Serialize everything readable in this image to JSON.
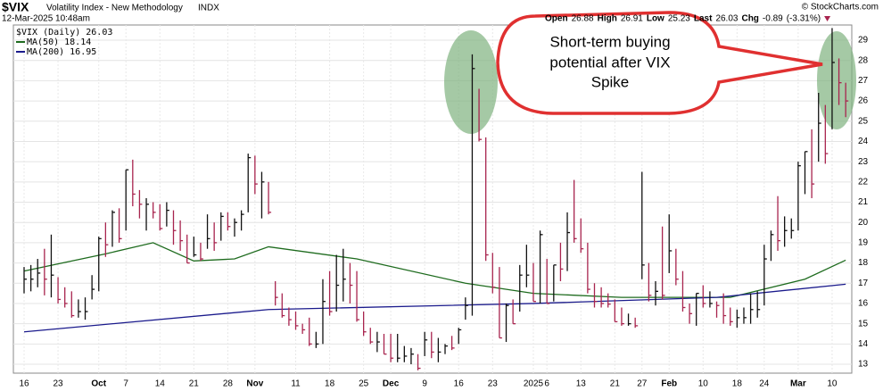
{
  "chart_data": {
    "type": "ohlc",
    "symbol": "$VIX",
    "title": "Volatility Index - New Methodology",
    "exchange": "INDX",
    "date": "12-Mar-2025 10:48am",
    "credit": "© StockCharts.com",
    "quote": [
      {
        "label": "Open",
        "value": 26.88
      },
      {
        "label": "High",
        "value": 26.91
      },
      {
        "label": "Low",
        "value": 25.23
      },
      {
        "label": "Last",
        "value": 26.03
      },
      {
        "label": "Chg",
        "value": -0.89
      }
    ],
    "chg_pct": "(-3.31%)",
    "price_legend": "$VIX (Daily) 26.03",
    "up_color": "#111111",
    "down_color": "#a8244e",
    "annotation": [
      "Short-term buying",
      "potential after VIX",
      "Spike"
    ],
    "ylim": [
      12.56,
      29.75
    ],
    "yticks": [
      13,
      14,
      15,
      16,
      17,
      18,
      19,
      20,
      21,
      22,
      23,
      24,
      25,
      26,
      27,
      28,
      29
    ],
    "xlim": [
      -1,
      122
    ],
    "xticks": [
      {
        "value": 0,
        "label": "16"
      },
      {
        "value": 5,
        "label": "23"
      },
      {
        "value": 11,
        "label": "Oct"
      },
      {
        "value": 15,
        "label": "7"
      },
      {
        "value": 20,
        "label": "14"
      },
      {
        "value": 25,
        "label": "21"
      },
      {
        "value": 30,
        "label": "28"
      },
      {
        "value": 34,
        "label": "Nov"
      },
      {
        "value": 40,
        "label": "11"
      },
      {
        "value": 45,
        "label": "18"
      },
      {
        "value": 50,
        "label": "25"
      },
      {
        "value": 54,
        "label": "Dec"
      },
      {
        "value": 59,
        "label": "9"
      },
      {
        "value": 64,
        "label": "16"
      },
      {
        "value": 69,
        "label": "23"
      },
      {
        "value": 75,
        "label": "2025"
      },
      {
        "value": 77,
        "label": "6"
      },
      {
        "value": 82,
        "label": "13"
      },
      {
        "value": 87,
        "label": "21"
      },
      {
        "value": 91,
        "label": "27"
      },
      {
        "value": 95,
        "label": "Feb"
      },
      {
        "value": 100,
        "label": "10"
      },
      {
        "value": 105,
        "label": "18"
      },
      {
        "value": 109,
        "label": "24"
      },
      {
        "value": 114,
        "label": "Mar"
      },
      {
        "value": 119,
        "label": "10"
      }
    ],
    "bars": [
      [
        17.8,
        16.5,
        17.2
      ],
      [
        17.9,
        16.6,
        17.2
      ],
      [
        18.2,
        16.8,
        17.5
      ],
      [
        18.7,
        16.4,
        17.2
      ],
      [
        19.4,
        16.3,
        17.4
      ],
      [
        17.3,
        16.0,
        16.2
      ],
      [
        16.8,
        15.8,
        16.0
      ],
      [
        16.6,
        15.3,
        15.4
      ],
      [
        16.2,
        15.3,
        15.6
      ],
      [
        16.3,
        15.2,
        15.6
      ],
      [
        17.4,
        16.2,
        16.7
      ],
      [
        19.3,
        16.6,
        19.2
      ],
      [
        20.0,
        18.3,
        18.9
      ],
      [
        20.6,
        18.8,
        20.5
      ],
      [
        20.7,
        19.0,
        19.2
      ],
      [
        22.6,
        19.6,
        22.6
      ],
      [
        23.1,
        20.8,
        21.4
      ],
      [
        21.6,
        20.2,
        20.9
      ],
      [
        21.2,
        19.6,
        20.9
      ],
      [
        21.0,
        20.2,
        20.5
      ],
      [
        20.9,
        19.6,
        19.7
      ],
      [
        21.0,
        19.8,
        20.6
      ],
      [
        20.6,
        18.9,
        19.6
      ],
      [
        20.1,
        18.6,
        19.1
      ],
      [
        19.4,
        18.0,
        18.0
      ],
      [
        19.3,
        18.3,
        18.4
      ],
      [
        19.0,
        18.1,
        18.2
      ],
      [
        20.4,
        18.7,
        19.2
      ],
      [
        20.0,
        18.6,
        19.0
      ],
      [
        20.5,
        19.1,
        20.3
      ],
      [
        20.5,
        19.6,
        19.8
      ],
      [
        20.2,
        19.3,
        20.0
      ],
      [
        20.6,
        19.6,
        20.4
      ],
      [
        23.4,
        20.5,
        23.2
      ],
      [
        23.3,
        21.4,
        21.9
      ],
      [
        22.5,
        20.2,
        22.0
      ],
      [
        22.0,
        20.4,
        20.5
      ],
      [
        17.1,
        15.9,
        16.3
      ],
      [
        16.5,
        15.3,
        15.4
      ],
      [
        15.8,
        14.9,
        15.2
      ],
      [
        15.6,
        14.7,
        14.9
      ],
      [
        15.0,
        14.5,
        14.7
      ],
      [
        15.3,
        13.9,
        14.0
      ],
      [
        14.6,
        13.8,
        14.0
      ],
      [
        17.2,
        14.0,
        16.1
      ],
      [
        17.6,
        15.4,
        15.6
      ],
      [
        18.4,
        15.6,
        16.9
      ],
      [
        18.7,
        16.1,
        17.2
      ],
      [
        18.0,
        16.0,
        16.9
      ],
      [
        17.6,
        15.1,
        15.2
      ],
      [
        15.6,
        14.4,
        14.6
      ],
      [
        14.8,
        14.0,
        14.1
      ],
      [
        14.6,
        13.6,
        14.1
      ],
      [
        14.5,
        13.5,
        13.5
      ],
      [
        14.5,
        13.1,
        13.3
      ],
      [
        14.5,
        13.1,
        13.3
      ],
      [
        13.9,
        13.1,
        13.4
      ],
      [
        13.8,
        13.0,
        13.5
      ],
      [
        13.5,
        12.7,
        12.8
      ],
      [
        14.6,
        13.4,
        14.2
      ],
      [
        14.6,
        13.3,
        13.6
      ],
      [
        14.3,
        13.1,
        13.6
      ],
      [
        14.0,
        13.5,
        13.9
      ],
      [
        14.4,
        13.7,
        13.8
      ],
      [
        14.8,
        14.0,
        14.7
      ],
      [
        16.3,
        15.2,
        15.9
      ],
      [
        28.3,
        15.4,
        27.6
      ],
      [
        26.6,
        24.0,
        24.1
      ],
      [
        24.2,
        18.1,
        18.4
      ],
      [
        18.5,
        16.5,
        16.8
      ],
      [
        17.8,
        14.3,
        14.3
      ],
      [
        16.0,
        14.1,
        15.9
      ],
      [
        16.2,
        15.0,
        15.0
      ],
      [
        17.9,
        15.6,
        17.4
      ],
      [
        18.9,
        16.8,
        17.4
      ],
      [
        18.0,
        16.1,
        16.1
      ],
      [
        19.6,
        16.0,
        19.4
      ],
      [
        18.2,
        16.0,
        16.0
      ],
      [
        17.9,
        16.1,
        17.9
      ],
      [
        19.0,
        17.1,
        17.7
      ],
      [
        20.5,
        17.6,
        19.5
      ],
      [
        22.1,
        19.0,
        19.2
      ],
      [
        20.2,
        18.5,
        18.7
      ],
      [
        19.0,
        16.5,
        16.7
      ],
      [
        17.0,
        15.8,
        16.1
      ],
      [
        16.8,
        15.8,
        16.0
      ],
      [
        16.5,
        15.8,
        15.97
      ],
      [
        16.2,
        15.1,
        15.1
      ],
      [
        15.8,
        14.9,
        15.0
      ],
      [
        15.5,
        14.9,
        15.0
      ],
      [
        15.3,
        14.8,
        14.9
      ],
      [
        22.5,
        17.2,
        17.9
      ],
      [
        18.0,
        16.1,
        16.4
      ],
      [
        17.1,
        15.9,
        16.6
      ],
      [
        19.8,
        16.2,
        16.4
      ],
      [
        20.4,
        17.5,
        18.6
      ],
      [
        18.7,
        16.9,
        17.2
      ],
      [
        17.6,
        15.6,
        15.8
      ],
      [
        16.0,
        15.0,
        15.5
      ],
      [
        16.5,
        14.9,
        16.5
      ],
      [
        16.9,
        15.8,
        16.0
      ],
      [
        16.6,
        15.8,
        16.0
      ],
      [
        16.1,
        15.3,
        15.9
      ],
      [
        16.5,
        15.0,
        15.4
      ],
      [
        15.8,
        14.9,
        15.1
      ],
      [
        15.7,
        14.8,
        15.3
      ],
      [
        15.8,
        15.0,
        15.3
      ],
      [
        16.5,
        15.0,
        15.7
      ],
      [
        16.6,
        15.3,
        15.7
      ],
      [
        18.9,
        15.9,
        18.2
      ],
      [
        19.6,
        18.1,
        19.4
      ],
      [
        21.3,
        18.6,
        19.1
      ],
      [
        20.3,
        18.8,
        19.6
      ],
      [
        20.2,
        19.2,
        19.6
      ],
      [
        23.0,
        19.6,
        22.8
      ],
      [
        23.5,
        21.4,
        23.5
      ],
      [
        24.6,
        21.2,
        21.9
      ],
      [
        26.4,
        23.0,
        24.9
      ],
      [
        25.8,
        22.9,
        23.4
      ],
      [
        29.6,
        24.6,
        27.9
      ],
      [
        28.1,
        25.8,
        26.9
      ],
      [
        26.9,
        25.2,
        26.0
      ]
    ],
    "series": [
      {
        "name": "MA(50) 18.14",
        "color": "#1e6b1e",
        "x": [
          0,
          12,
          19,
          25,
          31,
          36,
          49,
          65,
          75,
          88,
          104,
          115,
          121
        ],
        "values": [
          17.6,
          18.45,
          19.0,
          18.1,
          18.2,
          18.8,
          18.2,
          17.0,
          16.5,
          16.3,
          16.3,
          17.2,
          18.14
        ]
      },
      {
        "name": "MA(200) 16.95",
        "color": "#1a1a8c",
        "x": [
          0,
          36,
          62,
          75,
          102,
          121
        ],
        "values": [
          14.6,
          15.7,
          15.9,
          16.0,
          16.3,
          16.95
        ]
      }
    ]
  }
}
